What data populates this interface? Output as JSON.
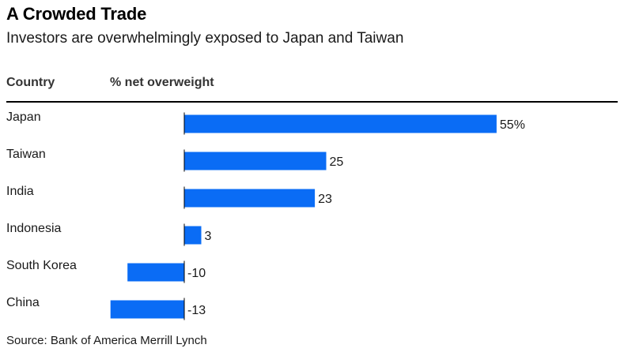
{
  "chart_data": {
    "type": "bar",
    "orientation": "horizontal",
    "title": "A Crowded Trade",
    "subtitle": "Investors are overwhelmingly exposed to Japan and Taiwan",
    "column_headers": {
      "category": "Country",
      "value": "% net overweight"
    },
    "categories": [
      "Japan",
      "Taiwan",
      "India",
      "Indonesia",
      "South Korea",
      "China"
    ],
    "values": [
      55,
      25,
      23,
      3,
      -10,
      -13
    ],
    "value_labels": [
      "55%",
      "25",
      "23",
      "3",
      "-10",
      "-13"
    ],
    "bar_color": "#0a6cf5",
    "grid": false,
    "legend": "none"
  },
  "source": "Source: Bank of America Merrill Lynch"
}
